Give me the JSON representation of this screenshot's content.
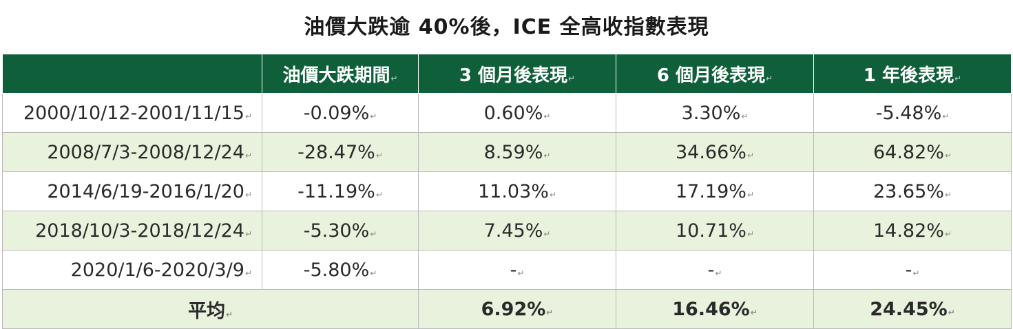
{
  "title": "油價大跌逾 40%後，ICE 全高收指數表現",
  "columns": [
    "",
    "油價大跌期間",
    "3 個月後表現",
    "6 個月後表現",
    "1 年後表現"
  ],
  "rows": [
    {
      "period": "2000/10/12-2001/11/15",
      "drop": "-0.09%",
      "m3": "0.60%",
      "m6": "3.30%",
      "y1": "-5.48%"
    },
    {
      "period": "2008/7/3-2008/12/24",
      "drop": "-28.47%",
      "m3": "8.59%",
      "m6": "34.66%",
      "y1": "64.82%"
    },
    {
      "period": "2014/6/19-2016/1/20",
      "drop": "-11.19%",
      "m3": "11.03%",
      "m6": "17.19%",
      "y1": "23.65%"
    },
    {
      "period": "2018/10/3-2018/12/24",
      "drop": "-5.30%",
      "m3": "7.45%",
      "m6": "10.71%",
      "y1": "14.82%"
    },
    {
      "period": "2020/1/6-2020/3/9",
      "drop": "-5.80%",
      "m3": "-",
      "m6": "-",
      "y1": "-"
    }
  ],
  "average": {
    "label": "平均",
    "m3": "6.92%",
    "m6": "16.46%",
    "y1": "24.45%"
  },
  "colors": {
    "header_bg": "#0f5f3a",
    "stripe_bg": "#e9f2dd",
    "border": "#b9b9b9"
  }
}
